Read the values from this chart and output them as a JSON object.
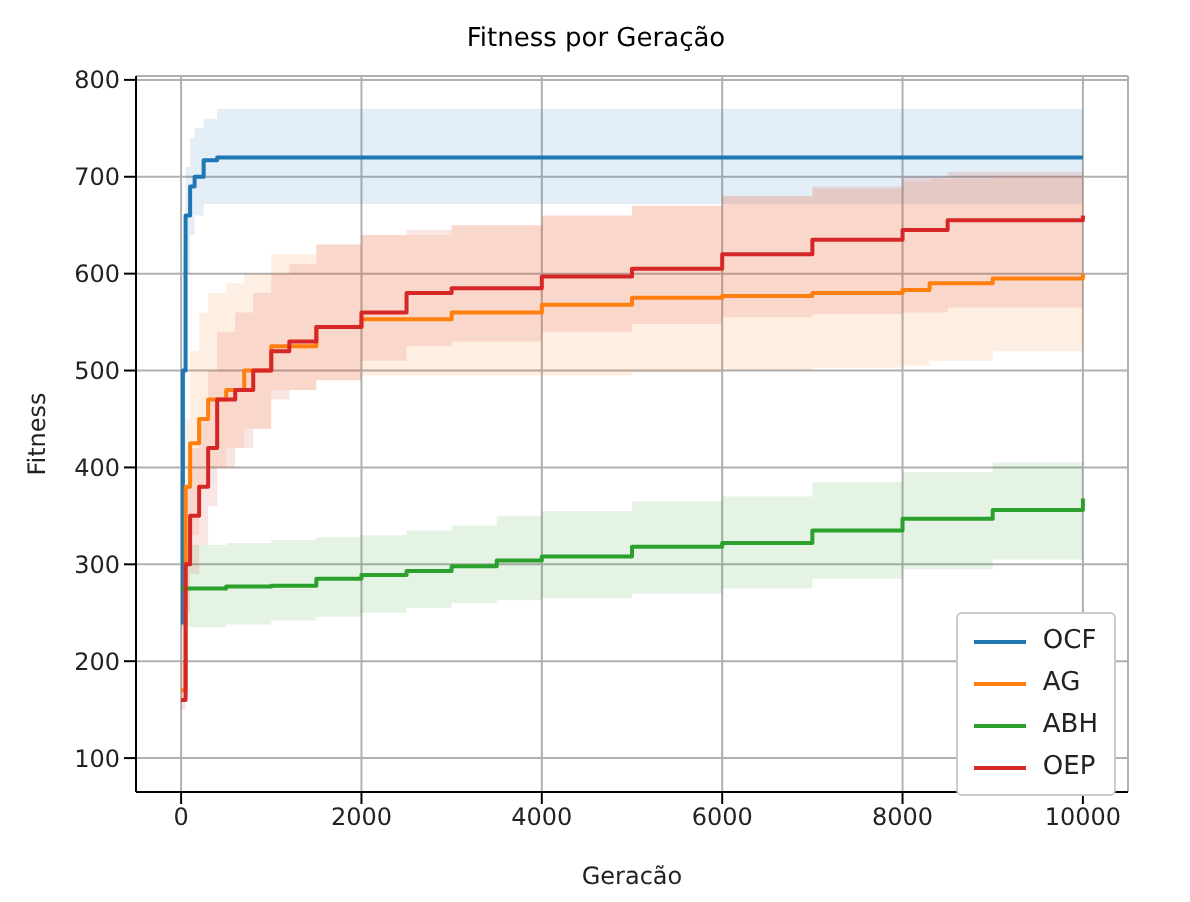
{
  "chart_data": {
    "type": "step",
    "title": "Fitness por Geração",
    "xlabel": "Geracão",
    "ylabel": "Fitness",
    "xlim": [
      -500,
      10500
    ],
    "ylim": [
      65,
      804
    ],
    "xticks": [
      0,
      2000,
      4000,
      6000,
      8000,
      10000
    ],
    "yticks": [
      100,
      200,
      300,
      400,
      500,
      600,
      700,
      800
    ],
    "grid": true,
    "legend": "bottom right",
    "series": [
      {
        "name": "OCF",
        "color": "#1f77b4",
        "x": [
          0,
          20,
          50,
          100,
          150,
          250,
          400,
          10000
        ],
        "values": [
          240,
          500,
          660,
          690,
          700,
          717,
          720,
          720
        ],
        "lower": [
          200,
          400,
          600,
          640,
          660,
          672,
          672,
          672
        ],
        "upper": [
          300,
          620,
          710,
          740,
          750,
          760,
          770,
          770
        ]
      },
      {
        "name": "AG",
        "color": "#ff7f0e",
        "x": [
          0,
          50,
          100,
          200,
          300,
          500,
          700,
          1000,
          1500,
          2000,
          3000,
          4000,
          5000,
          6000,
          7000,
          8000,
          8300,
          9000,
          10000
        ],
        "values": [
          170,
          380,
          425,
          450,
          470,
          480,
          500,
          525,
          545,
          553,
          560,
          568,
          575,
          577,
          580,
          583,
          590,
          595,
          600
        ],
        "lower": [
          160,
          300,
          330,
          380,
          400,
          420,
          440,
          480,
          490,
          495,
          495,
          495,
          498,
          500,
          503,
          505,
          510,
          520,
          535
        ],
        "upper": [
          200,
          450,
          520,
          560,
          580,
          590,
          600,
          620,
          630,
          640,
          650,
          660,
          670,
          680,
          688,
          695,
          698,
          700,
          700
        ]
      },
      {
        "name": "ABH",
        "color": "#2ca02c",
        "x": [
          0,
          500,
          1000,
          1500,
          2000,
          2500,
          3000,
          3500,
          4000,
          5000,
          6000,
          7000,
          8000,
          9000,
          10000
        ],
        "values": [
          275,
          277,
          278,
          285,
          289,
          293,
          298,
          304,
          308,
          318,
          322,
          335,
          347,
          356,
          368
        ],
        "lower": [
          235,
          238,
          242,
          246,
          250,
          255,
          260,
          263,
          265,
          270,
          275,
          285,
          295,
          305,
          320
        ],
        "upper": [
          320,
          322,
          325,
          328,
          330,
          335,
          340,
          350,
          355,
          365,
          370,
          385,
          395,
          405,
          415
        ]
      },
      {
        "name": "OEP",
        "color": "#d62728",
        "x": [
          0,
          50,
          100,
          200,
          300,
          400,
          600,
          800,
          1000,
          1200,
          1500,
          2000,
          2500,
          3000,
          4000,
          5000,
          6000,
          7000,
          8000,
          8500,
          10000
        ],
        "values": [
          160,
          300,
          350,
          380,
          420,
          470,
          480,
          500,
          520,
          530,
          545,
          560,
          580,
          585,
          597,
          605,
          620,
          635,
          645,
          655,
          660
        ],
        "lower": [
          150,
          250,
          290,
          320,
          360,
          400,
          420,
          440,
          470,
          480,
          490,
          510,
          525,
          530,
          540,
          548,
          555,
          558,
          560,
          565,
          570
        ],
        "upper": [
          200,
          380,
          420,
          450,
          500,
          540,
          560,
          580,
          600,
          610,
          630,
          640,
          645,
          650,
          660,
          670,
          680,
          690,
          700,
          705,
          710
        ]
      }
    ]
  }
}
